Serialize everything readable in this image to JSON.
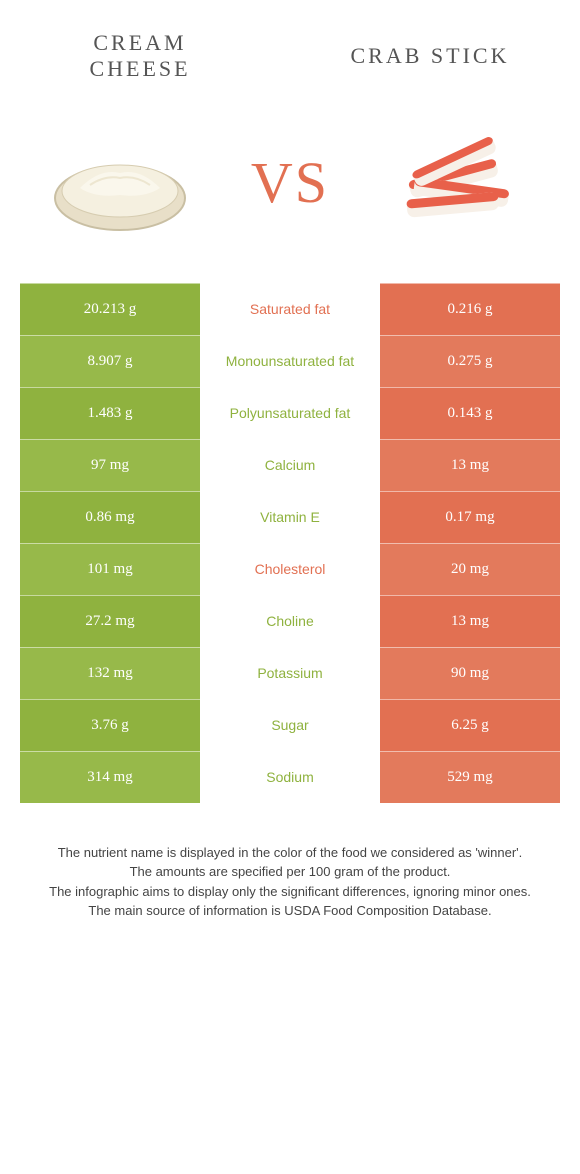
{
  "colors": {
    "left_bg": "#8fb23f",
    "right_bg": "#e27052",
    "left_bg_alt": "#97b94a",
    "right_bg_alt": "#e37a5c",
    "left_text": "#8fb23f",
    "right_text": "#e27052"
  },
  "foods": {
    "left": "CREAM CHEESE",
    "right": "CRAB STICK"
  },
  "vs": "VS",
  "rows": [
    {
      "left": "20.213 g",
      "label": "Saturated fat",
      "right": "0.216 g",
      "winner": "right"
    },
    {
      "left": "8.907 g",
      "label": "Monounsaturated fat",
      "right": "0.275 g",
      "winner": "left"
    },
    {
      "left": "1.483 g",
      "label": "Polyunsaturated fat",
      "right": "0.143 g",
      "winner": "left"
    },
    {
      "left": "97 mg",
      "label": "Calcium",
      "right": "13 mg",
      "winner": "left"
    },
    {
      "left": "0.86 mg",
      "label": "Vitamin E",
      "right": "0.17 mg",
      "winner": "left"
    },
    {
      "left": "101 mg",
      "label": "Cholesterol",
      "right": "20 mg",
      "winner": "right"
    },
    {
      "left": "27.2 mg",
      "label": "Choline",
      "right": "13 mg",
      "winner": "left"
    },
    {
      "left": "132 mg",
      "label": "Potassium",
      "right": "90 mg",
      "winner": "left"
    },
    {
      "left": "3.76 g",
      "label": "Sugar",
      "right": "6.25 g",
      "winner": "left"
    },
    {
      "left": "314 mg",
      "label": "Sodium",
      "right": "529 mg",
      "winner": "left"
    }
  ],
  "footer": [
    "The nutrient name is displayed in the color of the food we considered as 'winner'.",
    "The amounts are specified per 100 gram of the product.",
    "The infographic aims to display only the significant differences, ignoring minor ones.",
    "The main source of information is USDA Food Composition Database."
  ]
}
